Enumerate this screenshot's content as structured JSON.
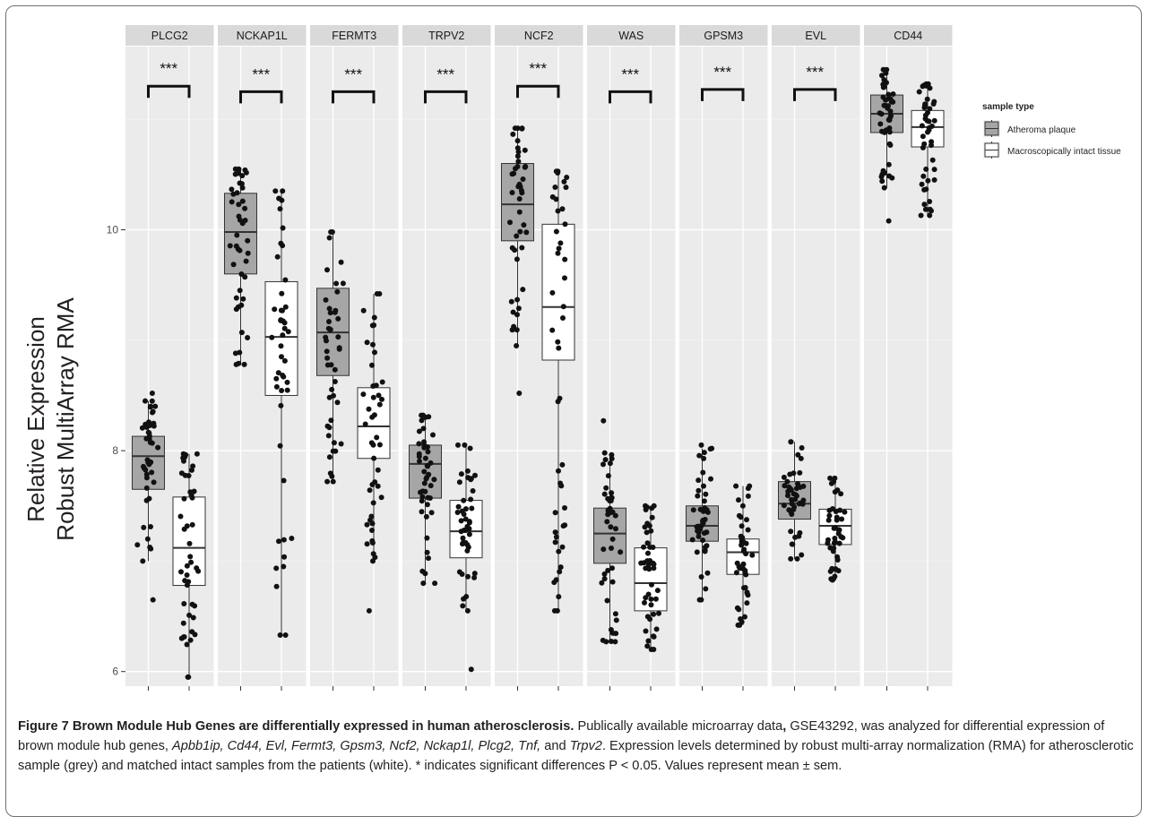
{
  "chart_data": {
    "type": "box",
    "ylabel_line1": "Relative Expression",
    "ylabel_line2": "Robust MultiArray RMA",
    "xlabel": "",
    "y_ticks": [
      6,
      8,
      10
    ],
    "ylim": [
      5.85,
      11.95
    ],
    "grid": true,
    "facet_labels": [
      "PLCG2",
      "NCKAP1L",
      "FERMT3",
      "TRPV2",
      "NCF2",
      "WAS",
      "GPSM3",
      "EVL",
      "CD44"
    ],
    "significance_label": "***",
    "legend": {
      "title": "sample type",
      "position": "right",
      "entries": [
        {
          "label": "Atheroma plaque",
          "color": "#a6a6a6"
        },
        {
          "label": "Macroscopically intact tissue",
          "color": "#ffffff"
        }
      ]
    },
    "series": [
      {
        "name": "Atheroma plaque",
        "color": "#a6a6a6"
      },
      {
        "name": "Macroscopically intact tissue",
        "color": "#ffffff"
      }
    ],
    "panels": [
      {
        "gene": "PLCG2",
        "significant": true,
        "bracket_y": 11.3,
        "boxes": [
          {
            "q1": 7.65,
            "median": 7.95,
            "q3": 8.13,
            "whisker_low": 7.0,
            "whisker_high": 8.45,
            "points_min": 6.65,
            "points_max": 8.52
          },
          {
            "q1": 6.78,
            "median": 7.12,
            "q3": 7.58,
            "whisker_low": 5.95,
            "whisker_high": 7.97,
            "points_min": 5.95,
            "points_max": 7.97
          }
        ]
      },
      {
        "gene": "NCKAP1L",
        "significant": true,
        "bracket_y": 11.25,
        "boxes": [
          {
            "q1": 9.6,
            "median": 9.98,
            "q3": 10.33,
            "whisker_low": 8.78,
            "whisker_high": 10.55,
            "points_min": 8.78,
            "points_max": 10.55
          },
          {
            "q1": 8.5,
            "median": 9.03,
            "q3": 9.53,
            "whisker_low": 6.33,
            "whisker_high": 10.35,
            "points_min": 6.33,
            "points_max": 10.35
          }
        ]
      },
      {
        "gene": "FERMT3",
        "significant": true,
        "bracket_y": 11.25,
        "boxes": [
          {
            "q1": 8.68,
            "median": 9.07,
            "q3": 9.47,
            "whisker_low": 7.72,
            "whisker_high": 9.98,
            "points_min": 7.72,
            "points_max": 9.98
          },
          {
            "q1": 7.93,
            "median": 8.22,
            "q3": 8.57,
            "whisker_low": 7.0,
            "whisker_high": 9.42,
            "points_min": 6.55,
            "points_max": 9.42
          }
        ]
      },
      {
        "gene": "TRPV2",
        "significant": true,
        "bracket_y": 11.25,
        "boxes": [
          {
            "q1": 7.57,
            "median": 7.88,
            "q3": 8.05,
            "whisker_low": 6.8,
            "whisker_high": 8.32,
            "points_min": 6.8,
            "points_max": 8.32
          },
          {
            "q1": 7.03,
            "median": 7.27,
            "q3": 7.55,
            "whisker_low": 6.55,
            "whisker_high": 8.05,
            "points_min": 6.02,
            "points_max": 8.05
          }
        ]
      },
      {
        "gene": "NCF2",
        "significant": true,
        "bracket_y": 11.3,
        "boxes": [
          {
            "q1": 9.9,
            "median": 10.23,
            "q3": 10.6,
            "whisker_low": 8.95,
            "whisker_high": 10.92,
            "points_min": 8.52,
            "points_max": 10.92
          },
          {
            "q1": 8.82,
            "median": 9.3,
            "q3": 10.05,
            "whisker_low": 6.55,
            "whisker_high": 10.53,
            "points_min": 6.55,
            "points_max": 10.53
          }
        ]
      },
      {
        "gene": "WAS",
        "significant": true,
        "bracket_y": 11.25,
        "boxes": [
          {
            "q1": 6.98,
            "median": 7.25,
            "q3": 7.48,
            "whisker_low": 6.27,
            "whisker_high": 7.98,
            "points_min": 6.27,
            "points_max": 8.27
          },
          {
            "q1": 6.55,
            "median": 6.8,
            "q3": 7.12,
            "whisker_low": 6.2,
            "whisker_high": 7.5,
            "points_min": 6.2,
            "points_max": 7.5
          }
        ]
      },
      {
        "gene": "GPSM3",
        "significant": true,
        "bracket_y": 11.27,
        "boxes": [
          {
            "q1": 7.18,
            "median": 7.32,
            "q3": 7.5,
            "whisker_low": 6.65,
            "whisker_high": 8.02,
            "points_min": 6.65,
            "points_max": 8.05
          },
          {
            "q1": 6.88,
            "median": 7.08,
            "q3": 7.2,
            "whisker_low": 6.42,
            "whisker_high": 7.68,
            "points_min": 6.42,
            "points_max": 7.68
          }
        ]
      },
      {
        "gene": "EVL",
        "significant": true,
        "bracket_y": 11.27,
        "boxes": [
          {
            "q1": 7.38,
            "median": 7.52,
            "q3": 7.72,
            "whisker_low": 7.02,
            "whisker_high": 8.08,
            "points_min": 7.02,
            "points_max": 8.08
          },
          {
            "q1": 7.15,
            "median": 7.32,
            "q3": 7.47,
            "whisker_low": 6.83,
            "whisker_high": 7.75,
            "points_min": 6.83,
            "points_max": 7.75
          }
        ]
      },
      {
        "gene": "CD44",
        "significant": false,
        "boxes": [
          {
            "q1": 10.88,
            "median": 11.05,
            "q3": 11.22,
            "whisker_low": 10.38,
            "whisker_high": 11.45,
            "points_min": 10.08,
            "points_max": 11.45
          },
          {
            "q1": 10.75,
            "median": 10.93,
            "q3": 11.08,
            "whisker_low": 10.13,
            "whisker_high": 11.32,
            "points_min": 10.13,
            "points_max": 11.32
          }
        ]
      }
    ]
  },
  "caption": {
    "title": "Figure 7 Brown Module Hub Genes are differentially expressed in human atherosclerosis.",
    "text_1": " Publically available microarray data",
    "text_1_comma": ",",
    "text_2": " GSE43292, was analyzed for differential expression of brown module hub genes, ",
    "genes": "Apbb1ip, Cd44, Evl, Fermt3, Gpsm3, Ncf2, Nckap1l, Plcg2, Tnf,",
    "text_and": " and ",
    "gene_last": "Trpv2",
    "text_3": ". Expression levels determined by robust multi-array normalization (RMA) for atherosclerotic sample (grey) and matched intact samples from the patients (white). * indicates significant differences P < 0.05. Values represent mean ± sem."
  }
}
